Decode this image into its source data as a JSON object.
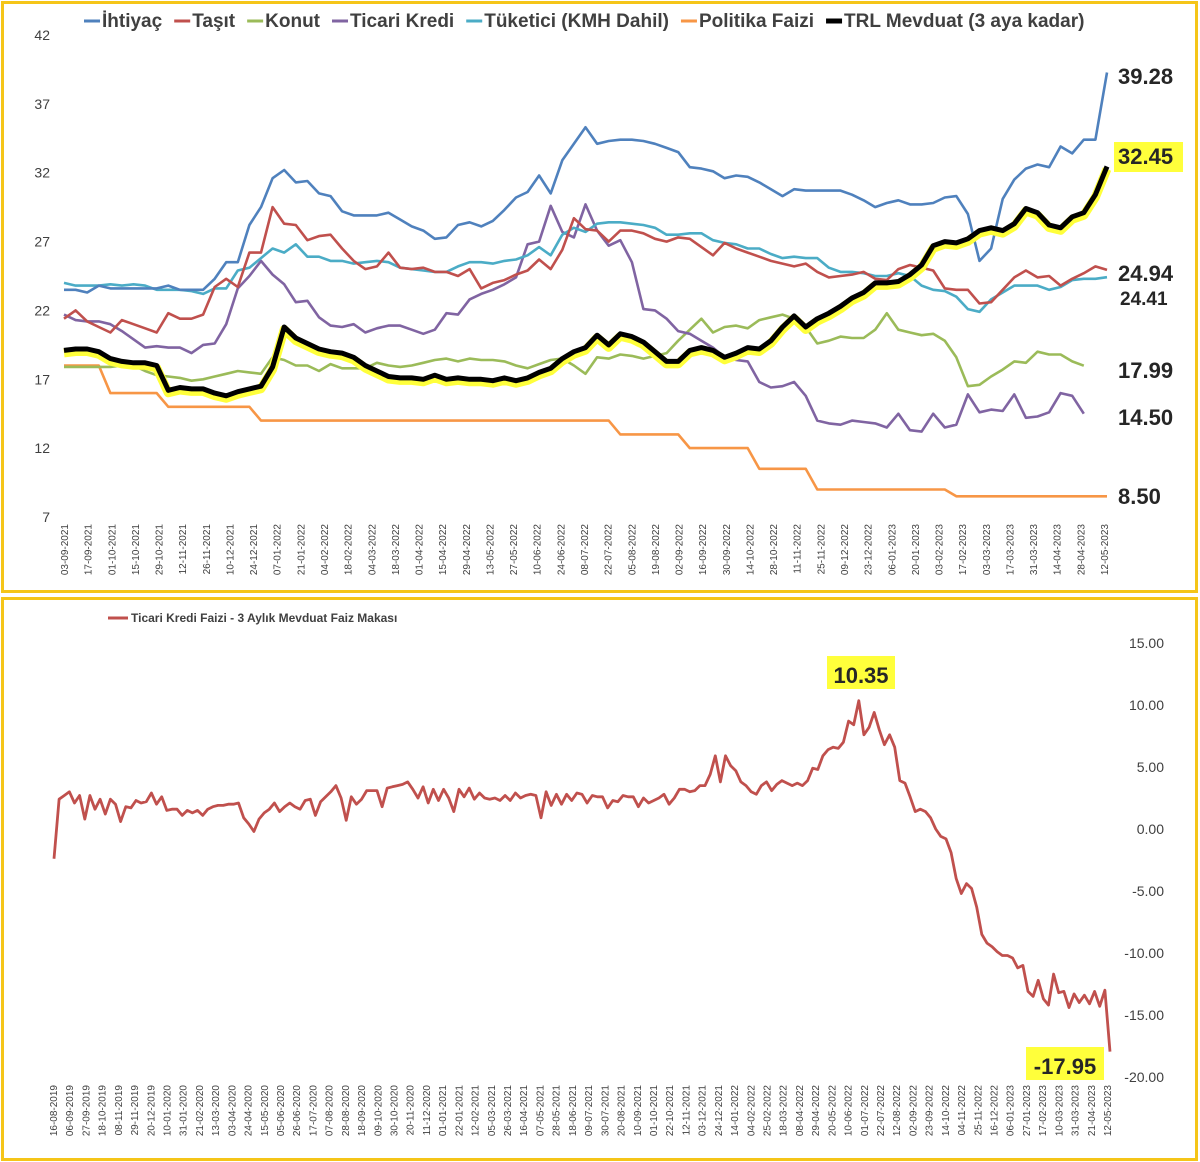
{
  "chart_data": [
    {
      "type": "line",
      "title": "",
      "xlabel": "",
      "ylabel": "",
      "ylim": [
        7,
        42
      ],
      "yticks": [
        7,
        12,
        17,
        22,
        27,
        32,
        37,
        42
      ],
      "legend_position": "top",
      "x_tick_labels": [
        "03-09-2021",
        "17-09-2021",
        "01-10-2021",
        "15-10-2021",
        "29-10-2021",
        "12-11-2021",
        "26-11-2021",
        "10-12-2021",
        "24-12-2021",
        "07-01-2022",
        "21-01-2022",
        "04-02-2022",
        "18-02-2022",
        "04-03-2022",
        "18-03-2022",
        "01-04-2022",
        "15-04-2022",
        "29-04-2022",
        "13-05-2022",
        "27-05-2022",
        "10-06-2022",
        "24-06-2022",
        "08-07-2022",
        "22-07-2022",
        "05-08-2022",
        "19-08-2022",
        "02-09-2022",
        "16-09-2022",
        "30-09-2022",
        "14-10-2022",
        "28-10-2022",
        "11-11-2022",
        "25-11-2022",
        "09-12-2022",
        "23-12-2022",
        "06-01-2023",
        "20-01-2023",
        "03-02-2023",
        "17-02-2023",
        "03-03-2023",
        "17-03-2023",
        "31-03-2023",
        "14-04-2023",
        "28-04-2023",
        "12-05-2023"
      ],
      "series": [
        {
          "name": "İhtiyaç",
          "color": "#4f81bd",
          "end_label": "39.28",
          "values": [
            23.5,
            23.5,
            23.3,
            23.8,
            23.6,
            23.6,
            23.6,
            23.6,
            23.6,
            23.8,
            23.5,
            23.5,
            23.5,
            24.3,
            25.5,
            25.5,
            28.2,
            29.5,
            31.6,
            32.2,
            31.3,
            31.4,
            30.5,
            30.3,
            29.2,
            28.9,
            28.9,
            28.9,
            29.1,
            28.6,
            28.1,
            27.8,
            27.2,
            27.3,
            28.2,
            28.4,
            28.1,
            28.5,
            29.3,
            30.2,
            30.6,
            31.8,
            30.5,
            32.9,
            34.1,
            35.3,
            34.1,
            34.3,
            34.4,
            34.4,
            34.3,
            34.1,
            33.8,
            33.5,
            32.4,
            32.3,
            32.1,
            31.6,
            31.8,
            31.7,
            31.3,
            30.8,
            30.3,
            30.8,
            30.7,
            30.7,
            30.7,
            30.7,
            30.4,
            30.0,
            29.5,
            29.8,
            30.0,
            29.7,
            29.7,
            29.8,
            30.2,
            30.3,
            29.0,
            25.6,
            26.5,
            30.1,
            31.5,
            32.3,
            32.6,
            32.4,
            33.9,
            33.4,
            34.4,
            34.4,
            39.28
          ]
        },
        {
          "name": "Taşıt",
          "color": "#c0504d",
          "end_label": "24.94",
          "values": [
            21.4,
            22.0,
            21.2,
            20.8,
            20.4,
            21.3,
            21.0,
            20.7,
            20.4,
            21.8,
            21.4,
            21.4,
            21.7,
            23.7,
            24.3,
            23.7,
            26.2,
            26.2,
            29.5,
            28.3,
            28.2,
            27.1,
            27.4,
            27.5,
            26.5,
            25.6,
            25.0,
            25.2,
            26.2,
            25.1,
            25.0,
            25.1,
            24.8,
            24.8,
            24.5,
            25.0,
            23.6,
            24.0,
            24.2,
            24.6,
            24.9,
            25.7,
            25.0,
            26.4,
            28.7,
            27.9,
            27.8,
            27.0,
            27.8,
            27.8,
            27.6,
            27.2,
            27.0,
            27.3,
            27.2,
            26.6,
            26.0,
            26.9,
            26.5,
            26.2,
            25.9,
            25.6,
            25.4,
            25.2,
            25.4,
            24.8,
            24.4,
            24.5,
            24.6,
            24.8,
            24.3,
            24.2,
            25.0,
            25.3,
            25.1,
            24.9,
            23.6,
            23.5,
            23.5,
            22.5,
            22.6,
            23.5,
            24.4,
            24.9,
            24.4,
            24.5,
            23.8,
            24.3,
            24.7,
            25.2,
            24.94
          ]
        },
        {
          "name": "Konut",
          "color": "#9bbb59",
          "end_label": "17.99",
          "values": [
            17.9,
            17.9,
            17.9,
            17.9,
            17.9,
            18.0,
            18.0,
            17.6,
            17.3,
            17.2,
            17.1,
            16.9,
            17.0,
            17.2,
            17.4,
            17.6,
            17.5,
            17.4,
            18.6,
            18.4,
            18.0,
            18.0,
            17.6,
            18.1,
            17.8,
            17.8,
            17.8,
            18.2,
            18.0,
            17.9,
            18.0,
            18.2,
            18.4,
            18.5,
            18.3,
            18.5,
            18.4,
            18.4,
            18.3,
            18.0,
            17.8,
            18.1,
            18.4,
            18.5,
            18.0,
            17.4,
            18.6,
            18.5,
            18.8,
            18.7,
            18.5,
            18.7,
            18.9,
            19.8,
            20.6,
            21.4,
            20.4,
            20.8,
            20.9,
            20.7,
            21.3,
            21.5,
            21.7,
            21.4,
            20.8,
            19.6,
            19.8,
            20.1,
            20.0,
            20.0,
            20.6,
            21.8,
            20.6,
            20.4,
            20.2,
            20.3,
            19.8,
            18.6,
            16.5,
            16.6,
            17.2,
            17.7,
            18.3,
            18.2,
            19.0,
            18.8,
            18.8,
            18.3,
            17.99
          ]
        },
        {
          "name": "Ticari Kredi",
          "color": "#8064a2",
          "end_label": "14.50",
          "values": [
            21.7,
            21.3,
            21.2,
            21.2,
            21.0,
            20.5,
            19.9,
            19.3,
            19.4,
            19.3,
            19.3,
            18.9,
            19.5,
            19.6,
            21.0,
            23.6,
            24.5,
            25.6,
            24.6,
            23.9,
            22.6,
            22.7,
            21.5,
            20.9,
            20.8,
            21.0,
            20.4,
            20.7,
            20.9,
            20.9,
            20.6,
            20.3,
            20.6,
            21.8,
            21.7,
            22.8,
            23.2,
            23.5,
            23.9,
            24.4,
            26.8,
            27.0,
            29.6,
            27.7,
            27.3,
            29.7,
            27.8,
            26.7,
            27.1,
            25.5,
            22.1,
            22.0,
            21.4,
            20.5,
            20.3,
            19.8,
            19.3,
            18.6,
            18.4,
            18.3,
            16.8,
            16.4,
            16.5,
            16.8,
            15.8,
            14.0,
            13.8,
            13.7,
            14.0,
            13.9,
            13.8,
            13.5,
            14.5,
            13.3,
            13.2,
            14.5,
            13.5,
            13.7,
            15.9,
            14.6,
            14.8,
            14.7,
            15.9,
            14.2,
            14.3,
            14.6,
            16.0,
            15.8,
            14.5
          ]
        },
        {
          "name": "Tüketici (KMH Dahil)",
          "color": "#4bacc6",
          "end_label": "24.41",
          "values": [
            24.0,
            23.8,
            23.8,
            23.8,
            23.9,
            23.8,
            23.9,
            23.8,
            23.5,
            23.5,
            23.5,
            23.4,
            23.2,
            23.6,
            23.6,
            24.9,
            25.1,
            25.8,
            26.5,
            26.2,
            26.8,
            25.9,
            25.9,
            25.6,
            25.6,
            25.4,
            25.5,
            25.6,
            25.5,
            25.1,
            25.0,
            24.9,
            24.8,
            24.8,
            25.2,
            25.5,
            25.5,
            25.4,
            25.6,
            25.7,
            26.0,
            26.6,
            26.0,
            27.5,
            28.0,
            27.7,
            28.3,
            28.4,
            28.4,
            28.3,
            28.2,
            28.0,
            27.5,
            27.5,
            27.6,
            27.6,
            27.1,
            26.9,
            26.8,
            26.5,
            26.5,
            26.1,
            25.8,
            25.9,
            25.8,
            25.8,
            25.1,
            24.8,
            24.8,
            24.7,
            24.5,
            24.5,
            24.7,
            24.5,
            23.8,
            23.5,
            23.4,
            23.0,
            22.1,
            21.9,
            22.8,
            23.3,
            23.8,
            23.8,
            23.8,
            23.5,
            23.7,
            24.2,
            24.3,
            24.3,
            24.41
          ]
        },
        {
          "name": "Politika Faizi",
          "color": "#f79646",
          "end_label": "8.50",
          "values": [
            18.0,
            18.0,
            18.0,
            18.0,
            16.0,
            16.0,
            16.0,
            16.0,
            16.0,
            15.0,
            15.0,
            15.0,
            15.0,
            15.0,
            15.0,
            15.0,
            15.0,
            14.0,
            14.0,
            14.0,
            14.0,
            14.0,
            14.0,
            14.0,
            14.0,
            14.0,
            14.0,
            14.0,
            14.0,
            14.0,
            14.0,
            14.0,
            14.0,
            14.0,
            14.0,
            14.0,
            14.0,
            14.0,
            14.0,
            14.0,
            14.0,
            14.0,
            14.0,
            14.0,
            14.0,
            14.0,
            14.0,
            14.0,
            13.0,
            13.0,
            13.0,
            13.0,
            13.0,
            13.0,
            12.0,
            12.0,
            12.0,
            12.0,
            12.0,
            12.0,
            10.5,
            10.5,
            10.5,
            10.5,
            10.5,
            9.0,
            9.0,
            9.0,
            9.0,
            9.0,
            9.0,
            9.0,
            9.0,
            9.0,
            9.0,
            9.0,
            9.0,
            8.5,
            8.5,
            8.5,
            8.5,
            8.5,
            8.5,
            8.5,
            8.5,
            8.5,
            8.5,
            8.5,
            8.5,
            8.5,
            8.5
          ]
        },
        {
          "name": "TRL Mevduat (3 aya kadar)",
          "color": "#000000",
          "end_label": "32.45",
          "highlight": true,
          "values": [
            19.1,
            19.2,
            19.2,
            19.0,
            18.5,
            18.3,
            18.2,
            18.2,
            18.0,
            16.2,
            16.4,
            16.3,
            16.3,
            16.0,
            15.8,
            16.1,
            16.3,
            16.5,
            17.9,
            20.8,
            20.0,
            19.6,
            19.2,
            19.0,
            18.9,
            18.6,
            18.0,
            17.6,
            17.2,
            17.1,
            17.1,
            17.0,
            17.3,
            17.0,
            17.1,
            17.0,
            17.0,
            16.9,
            17.1,
            16.9,
            17.1,
            17.5,
            17.8,
            18.5,
            19.0,
            19.3,
            20.2,
            19.5,
            20.3,
            20.1,
            19.7,
            19.0,
            18.3,
            18.3,
            19.1,
            19.3,
            19.1,
            18.6,
            18.9,
            19.3,
            19.2,
            19.8,
            20.8,
            21.6,
            20.8,
            21.4,
            21.8,
            22.3,
            22.9,
            23.3,
            24.0,
            24.0,
            24.1,
            24.6,
            25.3,
            26.7,
            27.0,
            26.9,
            27.2,
            27.8,
            28.0,
            27.8,
            28.3,
            29.4,
            29.1,
            28.2,
            28.0,
            28.8,
            29.1,
            30.4,
            32.45
          ]
        }
      ]
    },
    {
      "type": "line",
      "title": "",
      "xlabel": "",
      "ylabel": "",
      "ylim": [
        -20,
        15
      ],
      "yticks": [
        15,
        10,
        5,
        0,
        -5,
        -10,
        -15,
        -20
      ],
      "ytick_labels": [
        "15.00",
        "10.00",
        "5.00",
        "0.00",
        "-5.00",
        "-10.00",
        "-15.00",
        "-20.00"
      ],
      "legend_position": "top-left",
      "x_tick_labels": [
        "16-08-2019",
        "06-09-2019",
        "27-09-2019",
        "18-10-2019",
        "08-11-2019",
        "29-11-2019",
        "20-12-2019",
        "10-01-2020",
        "31-01-2020",
        "21-02-2020",
        "13-03-2020",
        "03-04-2020",
        "24-04-2020",
        "15-05-2020",
        "05-06-2020",
        "26-06-2020",
        "17-07-2020",
        "07-08-2020",
        "28-08-2020",
        "18-09-2020",
        "09-10-2020",
        "30-10-2020",
        "20-11-2020",
        "11-12-2020",
        "01-01-2021",
        "22-01-2021",
        "12-02-2021",
        "05-03-2021",
        "26-03-2021",
        "16-04-2021",
        "07-05-2021",
        "28-05-2021",
        "18-06-2021",
        "09-07-2021",
        "30-07-2021",
        "20-08-2021",
        "10-09-2021",
        "01-10-2021",
        "22-10-2021",
        "12-11-2021",
        "03-12-2021",
        "24-12-2021",
        "14-01-2022",
        "04-02-2022",
        "25-02-2022",
        "18-03-2022",
        "08-04-2022",
        "29-04-2022",
        "20-05-2022",
        "10-06-2022",
        "01-07-2022",
        "22-07-2022",
        "12-08-2022",
        "02-09-2022",
        "23-09-2022",
        "14-10-2022",
        "04-11-2022",
        "25-11-2022",
        "16-12-2022",
        "06-01-2023",
        "27-01-2023",
        "17-02-2023",
        "10-03-2023",
        "31-03-2023",
        "21-04-2023",
        "12-05-2023"
      ],
      "series": [
        {
          "name": "Ticari Kredi Faizi - 3 Aylık Mevduat Faiz Makası",
          "color": "#c0504d",
          "max_label": "10.35",
          "min_label": "-17.95",
          "values": [
            -2.4,
            2.4,
            2.7,
            3.0,
            2.1,
            2.7,
            0.8,
            2.7,
            1.6,
            2.4,
            1.2,
            2.4,
            2.0,
            0.6,
            1.8,
            1.7,
            2.3,
            2.1,
            2.2,
            2.9,
            2.0,
            2.6,
            1.5,
            1.6,
            1.6,
            1.1,
            1.5,
            1.3,
            1.5,
            1.1,
            1.6,
            1.8,
            1.9,
            1.9,
            2.0,
            2.0,
            2.1,
            0.9,
            0.4,
            -0.2,
            0.8,
            1.3,
            1.6,
            2.1,
            1.4,
            1.8,
            2.1,
            1.8,
            1.6,
            2.3,
            2.4,
            1.1,
            2.2,
            2.6,
            3.0,
            3.5,
            2.5,
            0.7,
            2.6,
            2.0,
            2.4,
            3.1,
            3.1,
            3.1,
            1.8,
            3.3,
            3.4,
            3.5,
            3.6,
            3.8,
            3.2,
            2.5,
            3.4,
            2.1,
            3.2,
            2.3,
            3.2,
            2.5,
            1.4,
            3.2,
            2.6,
            3.3,
            2.4,
            2.9,
            2.5,
            2.4,
            2.5,
            2.3,
            2.7,
            2.3,
            2.9,
            2.5,
            2.7,
            2.8,
            2.7,
            0.9,
            3.0,
            1.9,
            2.8,
            2.0,
            2.8,
            2.3,
            2.9,
            2.8,
            2.1,
            2.7,
            2.6,
            2.6,
            1.7,
            2.3,
            2.2,
            2.7,
            2.6,
            2.6,
            1.8,
            2.5,
            2.1,
            2.3,
            2.5,
            2.8,
            2.0,
            2.5,
            3.2,
            3.2,
            3.0,
            3.1,
            3.5,
            3.5,
            4.4,
            5.9,
            3.8,
            5.9,
            5.1,
            4.7,
            3.8,
            3.5,
            3.0,
            2.8,
            3.5,
            3.8,
            3.1,
            3.6,
            3.9,
            3.7,
            3.5,
            3.7,
            3.5,
            3.9,
            4.9,
            4.8,
            5.9,
            6.4,
            6.6,
            6.5,
            7.0,
            8.7,
            8.4,
            10.35,
            7.6,
            8.2,
            9.4,
            8.0,
            6.8,
            7.6,
            6.6,
            3.9,
            3.7,
            2.6,
            1.4,
            1.6,
            1.4,
            0.9,
            0.0,
            -0.6,
            -0.8,
            -1.9,
            -4.0,
            -5.2,
            -4.4,
            -4.8,
            -6.3,
            -8.5,
            -9.2,
            -9.5,
            -9.9,
            -10.2,
            -10.2,
            -10.4,
            -11.2,
            -11.0,
            -13.1,
            -13.5,
            -12.2,
            -13.7,
            -14.2,
            -11.7,
            -13.2,
            -13.1,
            -14.4,
            -13.3,
            -14.0,
            -13.4,
            -14.1,
            -13.1,
            -14.3,
            -13.0,
            -17.95
          ]
        }
      ]
    }
  ]
}
